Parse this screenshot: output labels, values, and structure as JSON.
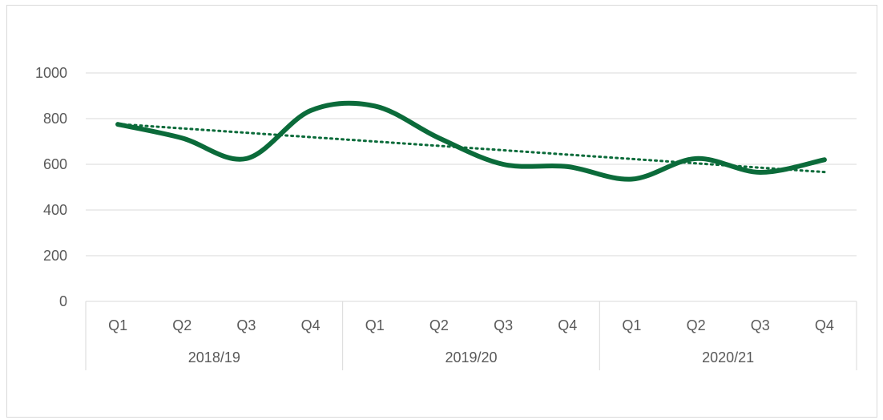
{
  "chart_data": {
    "type": "line",
    "title": "",
    "xlabel": "",
    "ylabel": "",
    "ylim": [
      0,
      1000
    ],
    "yticks": [
      "0",
      "200",
      "400",
      "600",
      "800",
      "1000"
    ],
    "groups": [
      {
        "label": "2018/19",
        "categories": [
          "Q1",
          "Q2",
          "Q3",
          "Q4"
        ]
      },
      {
        "label": "2019/20",
        "categories": [
          "Q1",
          "Q2",
          "Q3",
          "Q4"
        ]
      },
      {
        "label": "2020/21",
        "categories": [
          "Q1",
          "Q2",
          "Q3",
          "Q4"
        ]
      }
    ],
    "series": [
      {
        "values": [
          775,
          715,
          625,
          835,
          855,
          715,
          600,
          590,
          535,
          625,
          565,
          620
        ]
      }
    ],
    "trendline": {
      "type": "linear",
      "style": "dotted"
    },
    "grid": true,
    "legend": "none",
    "colors": {
      "line": "#0b6b3a",
      "grid": "#d9d9d9",
      "text": "#595959"
    }
  }
}
